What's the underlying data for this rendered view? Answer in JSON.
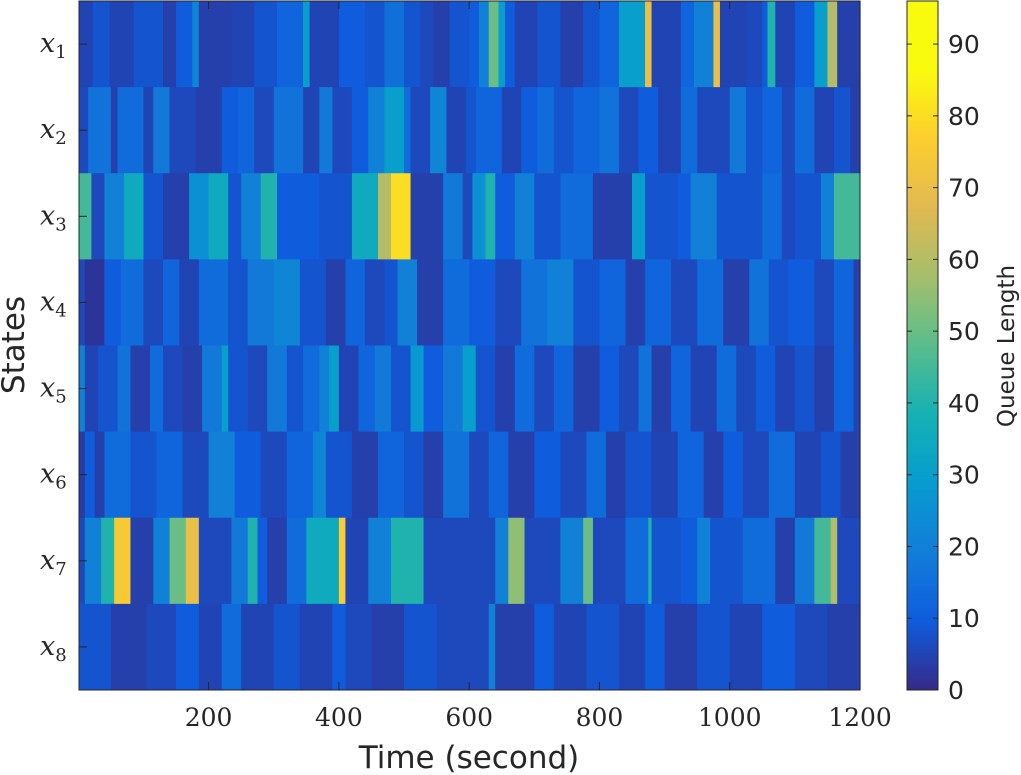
{
  "chart_data": {
    "type": "heatmap",
    "xlabel": "Time (second)",
    "ylabel": "States",
    "x_range": [
      1,
      1200
    ],
    "x_ticks": [
      200,
      400,
      600,
      800,
      1000,
      1200
    ],
    "x_tick_labels": [
      "200",
      "400",
      "600",
      "800",
      "1000",
      "1200"
    ],
    "rows": [
      "x1",
      "x2",
      "x3",
      "x4",
      "x5",
      "x6",
      "x7",
      "x8"
    ],
    "row_labels": [
      {
        "base": "x",
        "sub": "1"
      },
      {
        "base": "x",
        "sub": "2"
      },
      {
        "base": "x",
        "sub": "3"
      },
      {
        "base": "x",
        "sub": "4"
      },
      {
        "base": "x",
        "sub": "5"
      },
      {
        "base": "x",
        "sub": "6"
      },
      {
        "base": "x",
        "sub": "7"
      },
      {
        "base": "x",
        "sub": "8"
      }
    ],
    "colorbar": {
      "label": "Queue Length",
      "range": [
        0,
        96
      ],
      "ticks": [
        0,
        10,
        20,
        30,
        40,
        50,
        60,
        70,
        80,
        90
      ],
      "tick_labels": [
        "0",
        "10",
        "20",
        "30",
        "40",
        "50",
        "60",
        "70",
        "80",
        "90"
      ],
      "colormap": "parula"
    },
    "segments": {
      "x1": [
        [
          1,
          5
        ],
        [
          22,
          8
        ],
        [
          48,
          5
        ],
        [
          85,
          8
        ],
        [
          130,
          4
        ],
        [
          150,
          10
        ],
        [
          175,
          22
        ],
        [
          185,
          4
        ],
        [
          235,
          5
        ],
        [
          270,
          8
        ],
        [
          305,
          12
        ],
        [
          345,
          30
        ],
        [
          355,
          5
        ],
        [
          400,
          10
        ],
        [
          440,
          8
        ],
        [
          470,
          15
        ],
        [
          500,
          8
        ],
        [
          525,
          6
        ],
        [
          545,
          4
        ],
        [
          570,
          8
        ],
        [
          600,
          10
        ],
        [
          615,
          20
        ],
        [
          630,
          50
        ],
        [
          645,
          30
        ],
        [
          655,
          10
        ],
        [
          670,
          5
        ],
        [
          705,
          8
        ],
        [
          740,
          4
        ],
        [
          775,
          8
        ],
        [
          800,
          12
        ],
        [
          830,
          30
        ],
        [
          870,
          70
        ],
        [
          880,
          5
        ],
        [
          925,
          12
        ],
        [
          945,
          20
        ],
        [
          975,
          70
        ],
        [
          985,
          5
        ],
        [
          1025,
          6
        ],
        [
          1050,
          10
        ],
        [
          1058,
          40
        ],
        [
          1070,
          5
        ],
        [
          1100,
          10
        ],
        [
          1130,
          30
        ],
        [
          1150,
          60
        ],
        [
          1165,
          4
        ]
      ],
      "x2": [
        [
          1,
          6
        ],
        [
          15,
          16
        ],
        [
          50,
          4
        ],
        [
          60,
          14
        ],
        [
          100,
          5
        ],
        [
          115,
          18
        ],
        [
          140,
          6
        ],
        [
          180,
          4
        ],
        [
          220,
          10
        ],
        [
          245,
          12
        ],
        [
          270,
          6
        ],
        [
          300,
          16
        ],
        [
          345,
          5
        ],
        [
          370,
          18
        ],
        [
          390,
          6
        ],
        [
          420,
          10
        ],
        [
          445,
          20
        ],
        [
          470,
          30
        ],
        [
          500,
          14
        ],
        [
          510,
          6
        ],
        [
          540,
          22
        ],
        [
          565,
          5
        ],
        [
          595,
          8
        ],
        [
          610,
          12
        ],
        [
          650,
          5
        ],
        [
          680,
          10
        ],
        [
          705,
          14
        ],
        [
          730,
          8
        ],
        [
          760,
          12
        ],
        [
          800,
          16
        ],
        [
          830,
          6
        ],
        [
          860,
          10
        ],
        [
          890,
          5
        ],
        [
          925,
          14
        ],
        [
          950,
          6
        ],
        [
          1000,
          18
        ],
        [
          1025,
          8
        ],
        [
          1050,
          12
        ],
        [
          1080,
          6
        ],
        [
          1100,
          14
        ],
        [
          1130,
          5
        ],
        [
          1160,
          8
        ],
        [
          1185,
          4
        ]
      ],
      "x3": [
        [
          1,
          45
        ],
        [
          20,
          6
        ],
        [
          40,
          20
        ],
        [
          70,
          35
        ],
        [
          100,
          8
        ],
        [
          130,
          4
        ],
        [
          170,
          25
        ],
        [
          200,
          35
        ],
        [
          230,
          8
        ],
        [
          250,
          20
        ],
        [
          280,
          40
        ],
        [
          305,
          10
        ],
        [
          370,
          8
        ],
        [
          420,
          35
        ],
        [
          460,
          60
        ],
        [
          480,
          80
        ],
        [
          510,
          4
        ],
        [
          560,
          18
        ],
        [
          590,
          6
        ],
        [
          605,
          25
        ],
        [
          625,
          40
        ],
        [
          640,
          10
        ],
        [
          670,
          20
        ],
        [
          700,
          8
        ],
        [
          740,
          14
        ],
        [
          790,
          4
        ],
        [
          850,
          30
        ],
        [
          870,
          8
        ],
        [
          920,
          10
        ],
        [
          940,
          20
        ],
        [
          980,
          8
        ],
        [
          1050,
          14
        ],
        [
          1080,
          6
        ],
        [
          1100,
          8
        ],
        [
          1140,
          20
        ],
        [
          1160,
          45
        ]
      ],
      "x4": [
        [
          1,
          6
        ],
        [
          10,
          2
        ],
        [
          40,
          10
        ],
        [
          65,
          14
        ],
        [
          100,
          6
        ],
        [
          130,
          12
        ],
        [
          155,
          5
        ],
        [
          185,
          14
        ],
        [
          230,
          8
        ],
        [
          260,
          18
        ],
        [
          300,
          22
        ],
        [
          340,
          8
        ],
        [
          380,
          4
        ],
        [
          410,
          12
        ],
        [
          440,
          6
        ],
        [
          470,
          8
        ],
        [
          490,
          20
        ],
        [
          520,
          4
        ],
        [
          560,
          14
        ],
        [
          600,
          10
        ],
        [
          640,
          6
        ],
        [
          680,
          16
        ],
        [
          720,
          20
        ],
        [
          760,
          8
        ],
        [
          800,
          12
        ],
        [
          840,
          4
        ],
        [
          870,
          12
        ],
        [
          910,
          6
        ],
        [
          950,
          14
        ],
        [
          990,
          4
        ],
        [
          1030,
          16
        ],
        [
          1060,
          8
        ],
        [
          1090,
          10
        ],
        [
          1130,
          6
        ],
        [
          1160,
          12
        ],
        [
          1190,
          4
        ]
      ],
      "x5": [
        [
          1,
          20
        ],
        [
          10,
          5
        ],
        [
          30,
          8
        ],
        [
          60,
          16
        ],
        [
          80,
          4
        ],
        [
          110,
          14
        ],
        [
          130,
          6
        ],
        [
          160,
          4
        ],
        [
          190,
          18
        ],
        [
          220,
          30
        ],
        [
          230,
          8
        ],
        [
          260,
          6
        ],
        [
          290,
          18
        ],
        [
          320,
          8
        ],
        [
          345,
          14
        ],
        [
          370,
          20
        ],
        [
          385,
          30
        ],
        [
          400,
          5
        ],
        [
          430,
          12
        ],
        [
          455,
          18
        ],
        [
          480,
          8
        ],
        [
          510,
          28
        ],
        [
          530,
          10
        ],
        [
          560,
          18
        ],
        [
          590,
          30
        ],
        [
          610,
          8
        ],
        [
          640,
          4
        ],
        [
          670,
          14
        ],
        [
          700,
          6
        ],
        [
          730,
          12
        ],
        [
          760,
          4
        ],
        [
          800,
          10
        ],
        [
          830,
          6
        ],
        [
          860,
          16
        ],
        [
          880,
          4
        ],
        [
          910,
          12
        ],
        [
          940,
          5
        ],
        [
          980,
          14
        ],
        [
          1010,
          6
        ],
        [
          1040,
          10
        ],
        [
          1070,
          5
        ],
        [
          1100,
          8
        ],
        [
          1130,
          4
        ],
        [
          1160,
          12
        ],
        [
          1190,
          5
        ]
      ],
      "x6": [
        [
          1,
          3
        ],
        [
          10,
          10
        ],
        [
          25,
          4
        ],
        [
          40,
          14
        ],
        [
          80,
          8
        ],
        [
          120,
          12
        ],
        [
          160,
          6
        ],
        [
          200,
          20
        ],
        [
          240,
          10
        ],
        [
          280,
          6
        ],
        [
          320,
          12
        ],
        [
          360,
          22
        ],
        [
          380,
          8
        ],
        [
          420,
          4
        ],
        [
          460,
          12
        ],
        [
          500,
          8
        ],
        [
          530,
          4
        ],
        [
          560,
          16
        ],
        [
          600,
          6
        ],
        [
          630,
          12
        ],
        [
          660,
          4
        ],
        [
          700,
          10
        ],
        [
          740,
          6
        ],
        [
          780,
          14
        ],
        [
          810,
          4
        ],
        [
          840,
          8
        ],
        [
          880,
          5
        ],
        [
          920,
          12
        ],
        [
          960,
          4
        ],
        [
          990,
          10
        ],
        [
          1020,
          6
        ],
        [
          1060,
          14
        ],
        [
          1100,
          5
        ],
        [
          1140,
          8
        ],
        [
          1170,
          4
        ]
      ],
      "x7": [
        [
          1,
          6
        ],
        [
          10,
          20
        ],
        [
          35,
          40
        ],
        [
          55,
          75
        ],
        [
          80,
          4
        ],
        [
          115,
          20
        ],
        [
          140,
          50
        ],
        [
          165,
          70
        ],
        [
          185,
          6
        ],
        [
          235,
          18
        ],
        [
          260,
          40
        ],
        [
          275,
          10
        ],
        [
          290,
          4
        ],
        [
          320,
          14
        ],
        [
          350,
          35
        ],
        [
          400,
          76
        ],
        [
          410,
          5
        ],
        [
          445,
          20
        ],
        [
          480,
          40
        ],
        [
          530,
          6
        ],
        [
          640,
          20
        ],
        [
          660,
          55
        ],
        [
          685,
          6
        ],
        [
          740,
          20
        ],
        [
          775,
          50
        ],
        [
          790,
          6
        ],
        [
          840,
          14
        ],
        [
          875,
          40
        ],
        [
          880,
          8
        ],
        [
          925,
          10
        ],
        [
          950,
          20
        ],
        [
          970,
          8
        ],
        [
          1020,
          14
        ],
        [
          1070,
          4
        ],
        [
          1100,
          18
        ],
        [
          1130,
          45
        ],
        [
          1155,
          60
        ],
        [
          1165,
          6
        ]
      ],
      "x8": [
        [
          1,
          8
        ],
        [
          50,
          4
        ],
        [
          105,
          6
        ],
        [
          150,
          10
        ],
        [
          185,
          5
        ],
        [
          220,
          14
        ],
        [
          250,
          5
        ],
        [
          300,
          8
        ],
        [
          340,
          5
        ],
        [
          390,
          10
        ],
        [
          410,
          6
        ],
        [
          450,
          4
        ],
        [
          500,
          8
        ],
        [
          550,
          6
        ],
        [
          630,
          20
        ],
        [
          640,
          4
        ],
        [
          700,
          10
        ],
        [
          730,
          5
        ],
        [
          780,
          8
        ],
        [
          830,
          5
        ],
        [
          870,
          10
        ],
        [
          900,
          4
        ],
        [
          950,
          8
        ],
        [
          1000,
          5
        ],
        [
          1050,
          10
        ],
        [
          1100,
          6
        ],
        [
          1150,
          4
        ]
      ]
    }
  }
}
